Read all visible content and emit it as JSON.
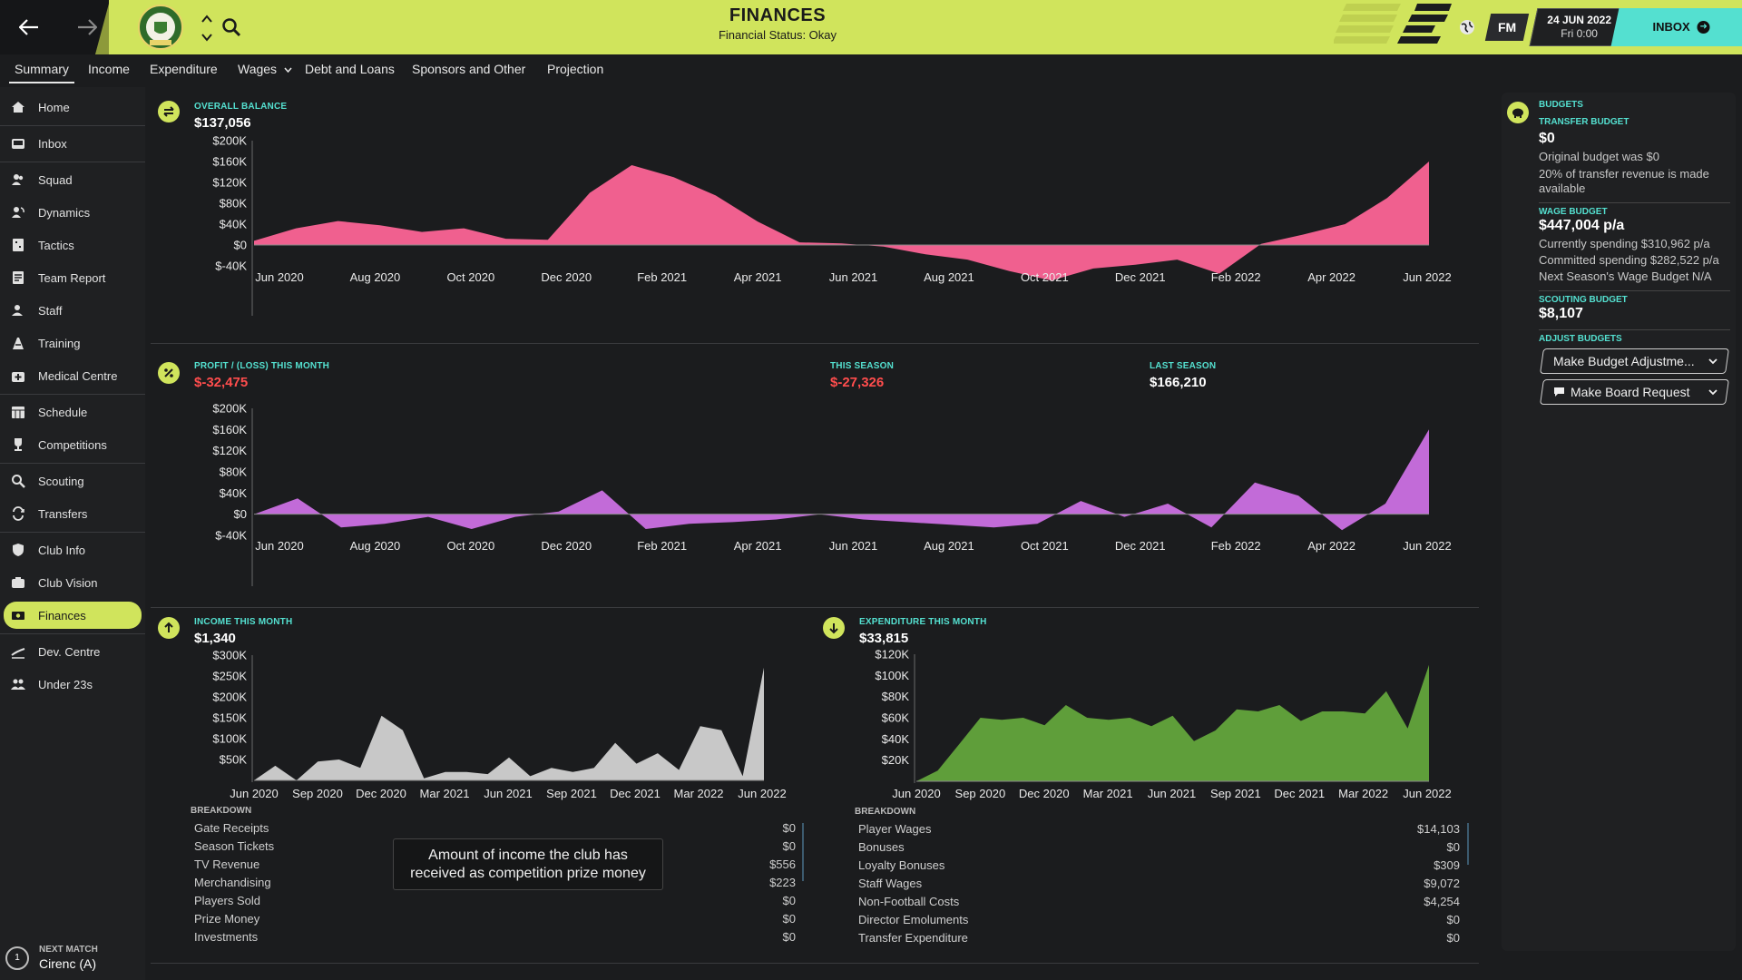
{
  "header": {
    "title": "FINANCES",
    "subtitle": "Financial Status: Okay",
    "fm_label": "FM",
    "date": "24 JUN 2022",
    "time": "Fri 0:00",
    "inbox_label": "INBOX",
    "accent": "#d0e45c",
    "teal": "#54e0d0"
  },
  "tabs": [
    "Summary",
    "Income",
    "Expenditure",
    "Wages",
    "Debt and Loans",
    "Sponsors and Other",
    "Projection"
  ],
  "sidebar": {
    "items": [
      {
        "label": "Home",
        "icon": "home-icon"
      },
      {
        "label": "Inbox",
        "icon": "inbox-icon"
      },
      {
        "label": "Squad",
        "icon": "squad-icon"
      },
      {
        "label": "Dynamics",
        "icon": "dynamics-icon"
      },
      {
        "label": "Tactics",
        "icon": "tactics-icon"
      },
      {
        "label": "Team Report",
        "icon": "report-icon"
      },
      {
        "label": "Staff",
        "icon": "staff-icon"
      },
      {
        "label": "Training",
        "icon": "training-icon"
      },
      {
        "label": "Medical Centre",
        "icon": "medical-icon"
      },
      {
        "label": "Schedule",
        "icon": "schedule-icon"
      },
      {
        "label": "Competitions",
        "icon": "trophy-icon"
      },
      {
        "label": "Scouting",
        "icon": "scouting-icon"
      },
      {
        "label": "Transfers",
        "icon": "transfers-icon"
      },
      {
        "label": "Club Info",
        "icon": "shield-icon"
      },
      {
        "label": "Club Vision",
        "icon": "vision-icon"
      },
      {
        "label": "Finances",
        "icon": "finances-icon"
      },
      {
        "label": "Dev. Centre",
        "icon": "dev-centre-icon"
      },
      {
        "label": "Under 23s",
        "icon": "under23-icon"
      }
    ],
    "next_match_label": "NEXT MATCH",
    "next_match_value": "Cirenc (A)",
    "next_match_number": "1"
  },
  "balance": {
    "label": "OVERALL BALANCE",
    "value": "$137,056"
  },
  "profit": {
    "month_label": "PROFIT / (LOSS) THIS MONTH",
    "month_value": "$-32,475",
    "season_label": "THIS SEASON",
    "season_value": "$-27,326",
    "last_label": "LAST SEASON",
    "last_value": "$166,210"
  },
  "income": {
    "label": "INCOME THIS MONTH",
    "value": "$1,340",
    "breakdown_title": "BREAKDOWN",
    "breakdown": [
      {
        "name": "Gate Receipts",
        "value": "$0"
      },
      {
        "name": "Season Tickets",
        "value": "$0"
      },
      {
        "name": "TV Revenue",
        "value": "$556"
      },
      {
        "name": "Merchandising",
        "value": "$223"
      },
      {
        "name": "Players Sold",
        "value": "$0"
      },
      {
        "name": "Prize Money",
        "value": "$0"
      },
      {
        "name": "Investments",
        "value": "$0"
      }
    ]
  },
  "expenditure": {
    "label": "EXPENDITURE THIS MONTH",
    "value": "$33,815",
    "breakdown_title": "BREAKDOWN",
    "breakdown": [
      {
        "name": "Player Wages",
        "value": "$14,103"
      },
      {
        "name": "Bonuses",
        "value": "$0"
      },
      {
        "name": "Loyalty Bonuses",
        "value": "$309"
      },
      {
        "name": "Staff Wages",
        "value": "$9,072"
      },
      {
        "name": "Non-Football Costs",
        "value": "$4,254"
      },
      {
        "name": "Director Emoluments",
        "value": "$0"
      },
      {
        "name": "Transfer Expenditure",
        "value": "$0"
      }
    ]
  },
  "tooltip": {
    "line1": "Amount of income the club has",
    "line2": "received as competition prize money"
  },
  "budgets": {
    "title": "BUDGETS",
    "transfer_label": "TRANSFER BUDGET",
    "transfer_value": "$0",
    "transfer_note1": "Original budget was $0",
    "transfer_note2": "20% of transfer revenue is made available",
    "wage_label": "WAGE BUDGET",
    "wage_value": "$447,004 p/a",
    "wage_note1": "Currently spending $310,962 p/a",
    "wage_note2": "Committed spending $282,522 p/a",
    "wage_note3": "Next Season's Wage Budget N/A",
    "scouting_label": "SCOUTING BUDGET",
    "scouting_value": "$8,107",
    "adjust_label": "ADJUST BUDGETS",
    "adjust_button": "Make Budget Adjustme...",
    "board_button": "Make Board Request"
  },
  "chart_data": [
    {
      "id": "balance",
      "type": "area",
      "color": "#f0608f",
      "ylim": [
        -40000,
        200000
      ],
      "y_ticks": [
        200000,
        160000,
        120000,
        80000,
        40000,
        0,
        -40000
      ],
      "y_tick_labels": [
        "$200K",
        "$160K",
        "$120K",
        "$80K",
        "$40K",
        "$0",
        "$-40K"
      ],
      "x_labels": [
        "Jun 2020",
        "Aug 2020",
        "Oct 2020",
        "Dec 2020",
        "Feb 2021",
        "Apr 2021",
        "Jun 2021",
        "Aug 2021",
        "Oct 2021",
        "Dec 2021",
        "Feb 2022",
        "Apr 2022",
        "Jun 2022"
      ],
      "values": [
        8000,
        32000,
        46000,
        38000,
        25000,
        32000,
        12000,
        10000,
        100000,
        153000,
        130000,
        95000,
        45000,
        5000,
        3000,
        -3000,
        -18000,
        -28000,
        -50000,
        -68000,
        -45000,
        -38000,
        -28000,
        -55000,
        2000,
        20000,
        40000,
        90000,
        160000
      ]
    },
    {
      "id": "profit",
      "type": "area",
      "color": "#c26bd8",
      "ylim": [
        -40000,
        200000
      ],
      "y_ticks": [
        200000,
        160000,
        120000,
        80000,
        40000,
        0,
        -40000
      ],
      "y_tick_labels": [
        "$200K",
        "$160K",
        "$120K",
        "$80K",
        "$40K",
        "$0",
        "$-40K"
      ],
      "x_labels": [
        "Jun 2020",
        "Aug 2020",
        "Oct 2020",
        "Dec 2020",
        "Feb 2021",
        "Apr 2021",
        "Jun 2021",
        "Aug 2021",
        "Oct 2021",
        "Dec 2021",
        "Feb 2022",
        "Apr 2022",
        "Jun 2022"
      ],
      "values": [
        0,
        30000,
        -25000,
        -18000,
        -5000,
        -28000,
        -5000,
        5000,
        45000,
        -28000,
        -18000,
        -15000,
        -10000,
        0,
        -10000,
        -15000,
        -20000,
        -25000,
        -18000,
        25000,
        -5000,
        20000,
        -25000,
        60000,
        35000,
        -30000,
        20000,
        160000
      ]
    },
    {
      "id": "income",
      "type": "area",
      "color": "#c8c8c8",
      "ylim": [
        0,
        300000
      ],
      "y_ticks": [
        300000,
        250000,
        200000,
        150000,
        100000,
        50000
      ],
      "y_tick_labels": [
        "$300K",
        "$250K",
        "$200K",
        "$150K",
        "$100K",
        "$50K"
      ],
      "x_labels": [
        "Jun 2020",
        "Sep 2020",
        "Dec 2020",
        "Mar 2021",
        "Jun 2021",
        "Sep 2021",
        "Dec 2021",
        "Mar 2022",
        "Jun 2022"
      ],
      "values": [
        0,
        35000,
        0,
        45000,
        50000,
        30000,
        155000,
        120000,
        5000,
        20000,
        20000,
        15000,
        55000,
        10000,
        30000,
        20000,
        30000,
        90000,
        40000,
        65000,
        25000,
        130000,
        120000,
        10000,
        270000
      ]
    },
    {
      "id": "expenditure",
      "type": "area",
      "color": "#5f9e3a",
      "ylim": [
        0,
        120000
      ],
      "y_ticks": [
        120000,
        100000,
        80000,
        60000,
        40000,
        20000
      ],
      "y_tick_labels": [
        "$120K",
        "$100K",
        "$80K",
        "$60K",
        "$40K",
        "$20K"
      ],
      "x_labels": [
        "Jun 2020",
        "Sep 2020",
        "Dec 2020",
        "Mar 2021",
        "Jun 2021",
        "Sep 2021",
        "Dec 2021",
        "Mar 2022",
        "Jun 2022"
      ],
      "values": [
        0,
        10000,
        35000,
        60000,
        58000,
        60000,
        53000,
        72000,
        60000,
        58000,
        60000,
        52000,
        62000,
        38000,
        48000,
        68000,
        66000,
        72000,
        57000,
        66000,
        66000,
        64000,
        85000,
        50000,
        110000
      ]
    }
  ]
}
